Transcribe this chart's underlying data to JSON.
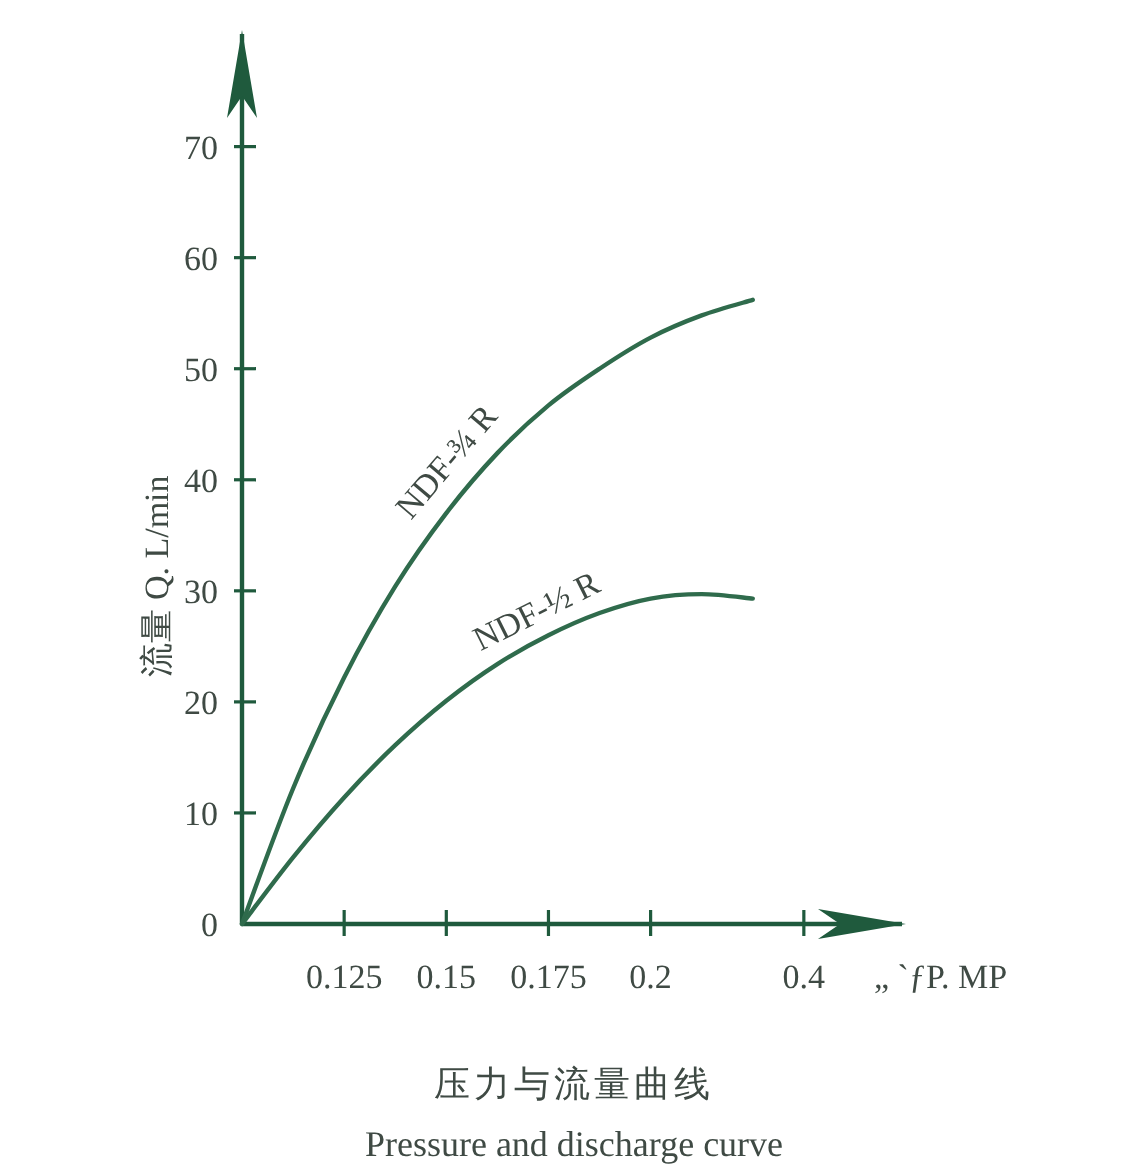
{
  "chart_data": {
    "type": "line",
    "title": "压力与流量曲线",
    "subtitle": "Pressure and discharge curve",
    "xlabel": "„ `ƒP. MP",
    "ylabel": "流量 Q. L/min",
    "categories": [
      null,
      null,
      "0.125",
      null,
      "0.15",
      null,
      "0.175",
      null,
      "0.2",
      null,
      null,
      "0.4"
    ],
    "ylim": [
      0,
      80.5
    ],
    "yticks": [
      0,
      10,
      20,
      30,
      40,
      50,
      60,
      70
    ],
    "line_style": "solid",
    "series": [
      {
        "name": "NDF-¾ R",
        "color": "#2f6b4c",
        "values": [
          0,
          12.2,
          22.2,
          30.4,
          37,
          42.4,
          46.7,
          50,
          52.8,
          54.8,
          56.2,
          null
        ]
      },
      {
        "name": "NDF-½ R",
        "color": "#2f6b4c",
        "values": [
          0,
          6,
          11.4,
          16.1,
          20.1,
          23.4,
          26,
          28,
          29.3,
          29.7,
          29.3,
          null
        ]
      }
    ]
  }
}
